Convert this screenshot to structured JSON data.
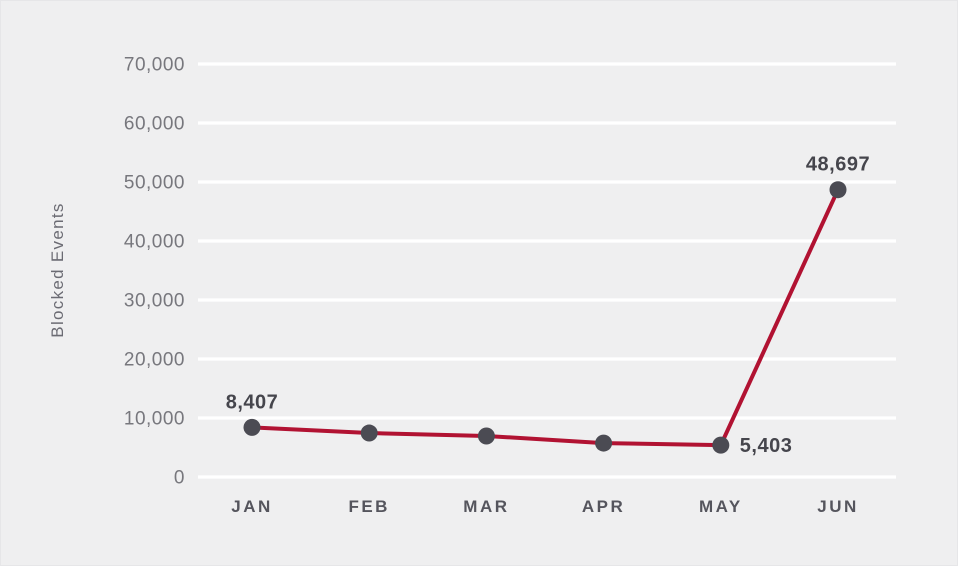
{
  "chart": {
    "background_color": "#EFEFF0",
    "gridline_color": "#FFFFFF",
    "line_color": "#B11232",
    "marker_color": "#4B4B53",
    "tick_label_color": "#77777D",
    "month_label_color": "#55555D",
    "data_label_color": "#45454C",
    "axis_label_color": "#6B6B73"
  },
  "chart_data": {
    "type": "line",
    "title": "",
    "xlabel": "",
    "ylabel": "Blocked Events",
    "categories": [
      "JAN",
      "FEB",
      "MAR",
      "APR",
      "MAY",
      "JUN"
    ],
    "series": [
      {
        "name": "Blocked Events",
        "values": [
          8407,
          7450,
          6950,
          5750,
          5403,
          48697
        ]
      }
    ],
    "point_labels": [
      {
        "index": 0,
        "text": "8,407",
        "position": "above"
      },
      {
        "index": 4,
        "text": "5,403",
        "position": "right"
      },
      {
        "index": 5,
        "text": "48,697",
        "position": "above"
      }
    ],
    "ylim": [
      0,
      70000
    ],
    "ytick_step": 10000,
    "ytick_labels": [
      "0",
      "10,000",
      "20,000",
      "30,000",
      "40,000",
      "50,000",
      "60,000",
      "70,000"
    ],
    "grid": "horizontal",
    "legend": "none"
  }
}
